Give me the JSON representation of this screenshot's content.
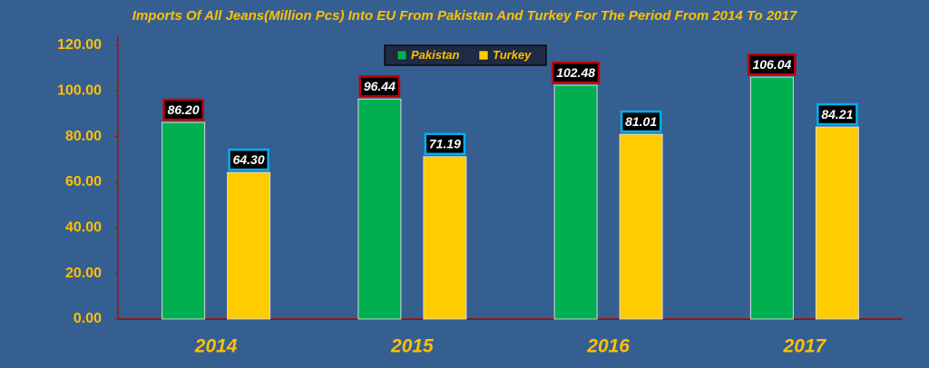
{
  "chart_data": {
    "type": "bar",
    "title": "Imports Of All Jeans(Million Pcs) Into EU From Pakistan And Turkey For The Period From 2014 To 2017",
    "categories": [
      "2014",
      "2015",
      "2016",
      "2017"
    ],
    "series": [
      {
        "name": "Pakistan",
        "color": "#00b050",
        "label_border": "#c00000",
        "values": [
          86.2,
          96.44,
          102.48,
          106.04
        ],
        "value_labels": [
          "86.20",
          "96.44",
          "102.48",
          "106.04"
        ]
      },
      {
        "name": "Turkey",
        "color": "#ffcc00",
        "label_border": "#00b0f0",
        "values": [
          64.3,
          71.19,
          81.01,
          84.21
        ],
        "value_labels": [
          "64.30",
          "71.19",
          "81.01",
          "84.21"
        ]
      }
    ],
    "ylim": [
      0,
      120
    ],
    "yticks": [
      {
        "value": 0,
        "label": "0.00"
      },
      {
        "value": 20,
        "label": "20.00"
      },
      {
        "value": 40,
        "label": "40.00"
      },
      {
        "value": 60,
        "label": "60.00"
      },
      {
        "value": 80,
        "label": "80.00"
      },
      {
        "value": 100,
        "label": "100.00"
      },
      {
        "value": 120,
        "label": "120.00"
      }
    ],
    "grid": false,
    "legend": "top"
  }
}
